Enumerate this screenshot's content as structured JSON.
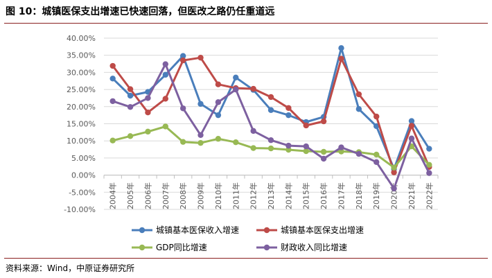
{
  "header": {
    "title": "图 10：城镇医保支出增速已快速回落，但医改之路仍任重道远"
  },
  "footer": {
    "source": "资料来源：Wind，中原证券研究所"
  },
  "chart_data": {
    "type": "line",
    "x": [
      "2004年",
      "2005年",
      "2006年",
      "2007年",
      "2008年",
      "2009年",
      "2010年",
      "2011年",
      "2012年",
      "2013年",
      "2014年",
      "2015年",
      "2016年",
      "2017年",
      "2018年",
      "2019年",
      "2020年",
      "2021年",
      "2022年"
    ],
    "yticks": [
      "40.00%",
      "35.00%",
      "30.00%",
      "25.00%",
      "20.00%",
      "15.00%",
      "10.00%",
      "5.00%",
      "0.00%",
      "-5.00%",
      "-10.00%"
    ],
    "ylim": [
      -10,
      40
    ],
    "grid": true,
    "legend_position": "bottom",
    "series": [
      {
        "name": "城镇基本医保收入增速",
        "color": "#4a7ebb",
        "values": [
          28.2,
          23.2,
          24.3,
          29.3,
          34.8,
          20.8,
          17.5,
          28.5,
          24.9,
          19.0,
          17.5,
          15.5,
          17.0,
          37.1,
          19.3,
          14.3,
          1.8,
          15.8,
          7.7
        ]
      },
      {
        "name": "城镇基本医保支出增速",
        "color": "#be4b48",
        "values": [
          31.9,
          25.1,
          18.3,
          22.3,
          33.5,
          34.3,
          26.5,
          25.4,
          25.2,
          22.8,
          19.6,
          14.5,
          15.7,
          34.0,
          23.6,
          17.1,
          0.8,
          14.4,
          2.4
        ]
      },
      {
        "name": "GDP同比增速",
        "color": "#98b954",
        "values": [
          10.1,
          11.4,
          12.7,
          14.2,
          9.7,
          9.4,
          10.6,
          9.6,
          7.9,
          7.8,
          7.4,
          7.0,
          6.8,
          6.9,
          6.7,
          6.0,
          2.2,
          8.4,
          3.0
        ]
      },
      {
        "name": "财政收入同比增速",
        "color": "#7d60a0",
        "values": [
          21.6,
          19.9,
          22.5,
          32.4,
          19.5,
          11.7,
          21.3,
          25.0,
          12.9,
          10.2,
          8.6,
          8.4,
          4.8,
          8.1,
          6.2,
          3.8,
          -3.9,
          10.7,
          0.6
        ]
      }
    ]
  }
}
